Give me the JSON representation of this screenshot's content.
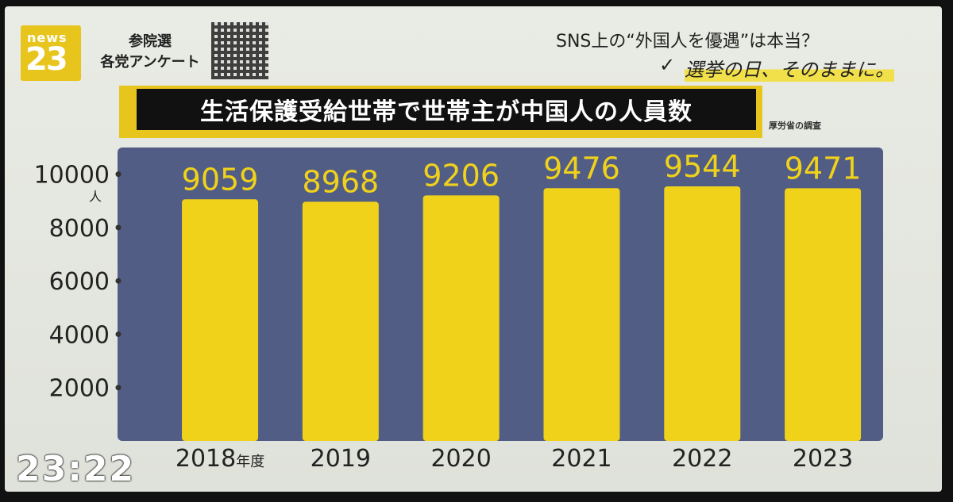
{
  "logo": {
    "line1": "news",
    "line2": "23"
  },
  "poll_label": [
    "参院選",
    "各党アンケート"
  ],
  "header": {
    "question": "SNS上の“外国人を優遇”は本当？",
    "check_mark": "✓",
    "tagline": "選挙の日、そのままに。"
  },
  "title": "生活保護受給世帯で世帯主が中国人の人員数",
  "source": "厚労省の調査",
  "clock": "23:22",
  "colors": {
    "bar": "#f0d21a",
    "plot_bg": "#525d86",
    "title_bg": "#111111",
    "accent": "#e8c51d"
  },
  "chart_data": {
    "type": "bar",
    "title": "生活保護受給世帯で世帯主が中国人の人員数",
    "categories": [
      "2018",
      "2019",
      "2020",
      "2021",
      "2022",
      "2023"
    ],
    "category_suffix": "年度",
    "values": [
      9059,
      8968,
      9206,
      9476,
      9544,
      9471
    ],
    "yticks": [
      2000,
      4000,
      6000,
      8000,
      10000
    ],
    "yunit": "人",
    "ylim": [
      0,
      11000
    ],
    "grid": false
  }
}
